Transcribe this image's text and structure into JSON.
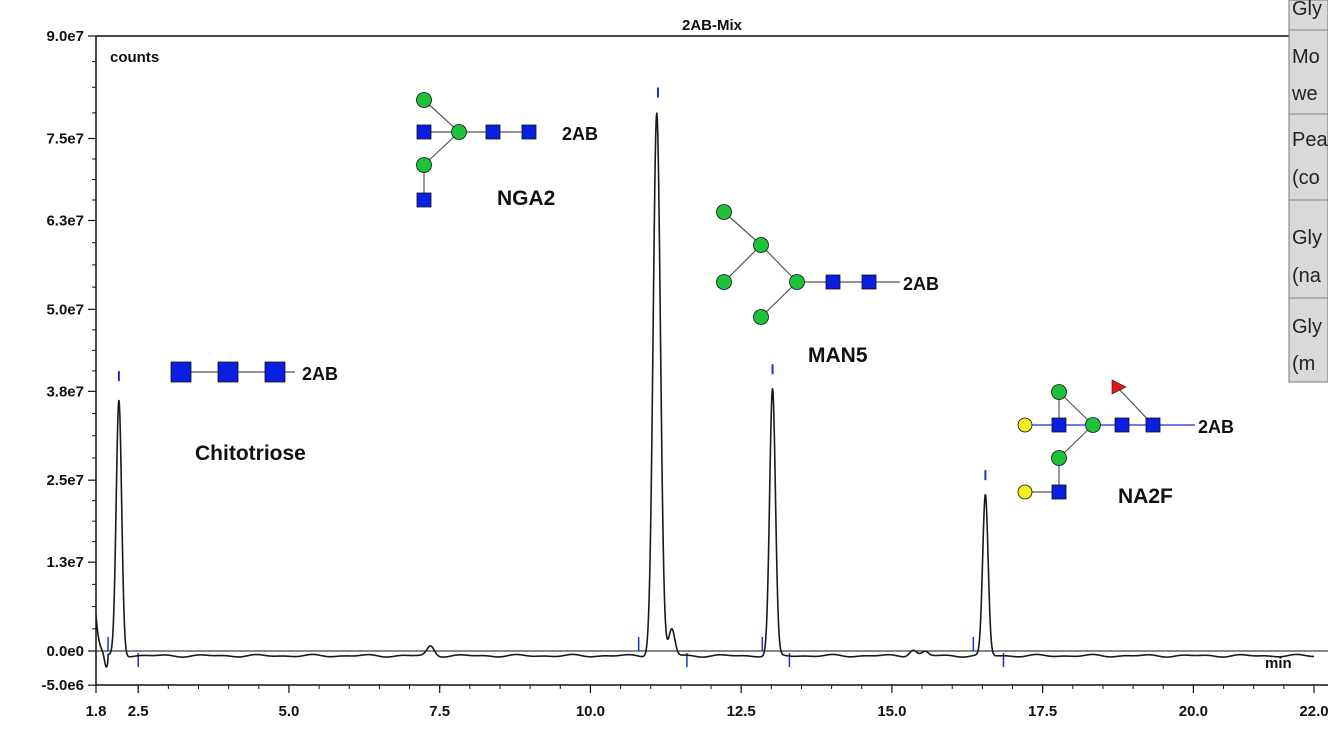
{
  "colors": {
    "trace": "#1a1a1a",
    "marker": "#1c2fd6",
    "glcnac": "#0b1fe0",
    "mannose": "#1ec23a",
    "galactose": "#f5ef22",
    "fucose": "#e01818",
    "legend_bg": "#d9d9d9"
  },
  "chart_data": {
    "type": "line",
    "title": "2AB-Mix",
    "ylabel": "counts",
    "xlabel": "min",
    "xlim": [
      1.8,
      22.0
    ],
    "ylim": [
      -5000000.0,
      90000000.0
    ],
    "x_ticks": [
      "1.8",
      "2.5",
      "5.0",
      "7.5",
      "10.0",
      "12.5",
      "15.0",
      "17.5",
      "20.0",
      "22.0"
    ],
    "x_tick_values": [
      1.8,
      2.5,
      5.0,
      7.5,
      10.0,
      12.5,
      15.0,
      17.5,
      20.0,
      22.0
    ],
    "y_ticks": [
      "9.0e7",
      "7.5e7",
      "6.3e7",
      "5.0e7",
      "3.8e7",
      "2.5e7",
      "1.3e7",
      "0.0e0",
      "-5.0e6"
    ],
    "y_tick_values": [
      90000000.0,
      75000000.0,
      63000000.0,
      50000000.0,
      38000000.0,
      25000000.0,
      13000000.0,
      0.0,
      -5000000.0
    ],
    "baseline": -700000.0,
    "peaks": [
      {
        "x": 2.18,
        "height": 37500000.0,
        "sigma": 0.045
      },
      {
        "x": 7.35,
        "height": 1400000.0,
        "sigma": 0.06
      },
      {
        "x": 11.1,
        "height": 79500000.0,
        "sigma": 0.06
      },
      {
        "x": 11.35,
        "height": 3900000.0,
        "sigma": 0.05
      },
      {
        "x": 13.02,
        "height": 39000000.0,
        "sigma": 0.048
      },
      {
        "x": 15.35,
        "height": 900000.0,
        "sigma": 0.06
      },
      {
        "x": 15.55,
        "height": 600000.0,
        "sigma": 0.05
      },
      {
        "x": 16.55,
        "height": 23500000.0,
        "sigma": 0.045
      }
    ],
    "markers": [
      {
        "x": 2.18,
        "y": 39500000.0
      },
      {
        "x": 11.12,
        "y": 81000000.0
      },
      {
        "x": 13.02,
        "y": 40500000.0
      },
      {
        "x": 16.55,
        "y": 25000000.0
      }
    ],
    "integration_ticks": [
      {
        "x": 2.0,
        "side": "up"
      },
      {
        "x": 2.5,
        "side": "down"
      },
      {
        "x": 10.8,
        "side": "up"
      },
      {
        "x": 11.6,
        "side": "down"
      },
      {
        "x": 12.85,
        "side": "up"
      },
      {
        "x": 13.3,
        "side": "down"
      },
      {
        "x": 16.35,
        "side": "up"
      },
      {
        "x": 16.85,
        "side": "down"
      }
    ]
  },
  "glycans": {
    "chitotriose": {
      "name": "Chitotriose",
      "tag": "2AB"
    },
    "nga2": {
      "name": "NGA2",
      "tag": "2AB"
    },
    "man5": {
      "name": "MAN5",
      "tag": "2AB"
    },
    "na2f": {
      "name": "NA2F",
      "tag": "2AB"
    }
  },
  "legend_fragments": [
    "Gly",
    "Mo",
    "we",
    "Pea",
    "(co",
    "Gly",
    "(na",
    "Gly",
    "(m"
  ]
}
